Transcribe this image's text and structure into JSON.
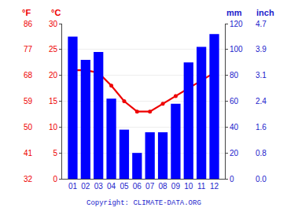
{
  "chart_data": {
    "type": "bar",
    "categories": [
      "01",
      "02",
      "03",
      "04",
      "05",
      "06",
      "07",
      "08",
      "09",
      "10",
      "11",
      "12"
    ],
    "series": [
      {
        "name": "mm",
        "type": "bar",
        "axis": "y2",
        "color": "#0000ff",
        "values": [
          110,
          92,
          98,
          62,
          38,
          20,
          36,
          36,
          58,
          90,
          102,
          112
        ]
      },
      {
        "name": "°C",
        "type": "line",
        "axis": "y",
        "color": "#ee0000",
        "marker": "circle",
        "values": [
          21,
          21,
          20.5,
          18,
          15,
          13,
          13,
          14.5,
          16,
          17.5,
          19,
          20.5
        ]
      }
    ],
    "ylabel": "°C",
    "ylim": [
      0,
      30
    ],
    "yticks": [
      0,
      5,
      10,
      15,
      20,
      25,
      30
    ],
    "y2label": "mm",
    "y2lim": [
      0,
      120
    ],
    "y2ticks": [
      0,
      20,
      40,
      60,
      80,
      100,
      120
    ],
    "y3label": "°F",
    "y3lim": [
      0,
      30
    ],
    "y3ticks": [
      {
        "value": 0,
        "label": "32"
      },
      {
        "value": 5,
        "label": "41"
      },
      {
        "value": 10,
        "label": "50"
      },
      {
        "value": 15,
        "label": "59"
      },
      {
        "value": 20,
        "label": "68"
      },
      {
        "value": 25,
        "label": "77"
      },
      {
        "value": 30,
        "label": "86"
      }
    ],
    "y4label": "inch",
    "y4lim": [
      0,
      120
    ],
    "y4ticks": [
      {
        "value": 0,
        "label": "0.0"
      },
      {
        "value": 20,
        "label": "0.8"
      },
      {
        "value": 40,
        "label": "1.6"
      },
      {
        "value": 60,
        "label": "2.4"
      },
      {
        "value": 80,
        "label": "3.1"
      },
      {
        "value": 100,
        "label": "3.9"
      },
      {
        "value": 120,
        "label": "4.7"
      }
    ],
    "left_axis_color": "#ee0000",
    "right_axis_color": "#2222cc",
    "xlabel_color": "#2222cc",
    "grid": true,
    "annotations": [
      {
        "text": "Copyright: CLIMATE-DATA.ORG",
        "color": "#2222cc"
      }
    ]
  }
}
